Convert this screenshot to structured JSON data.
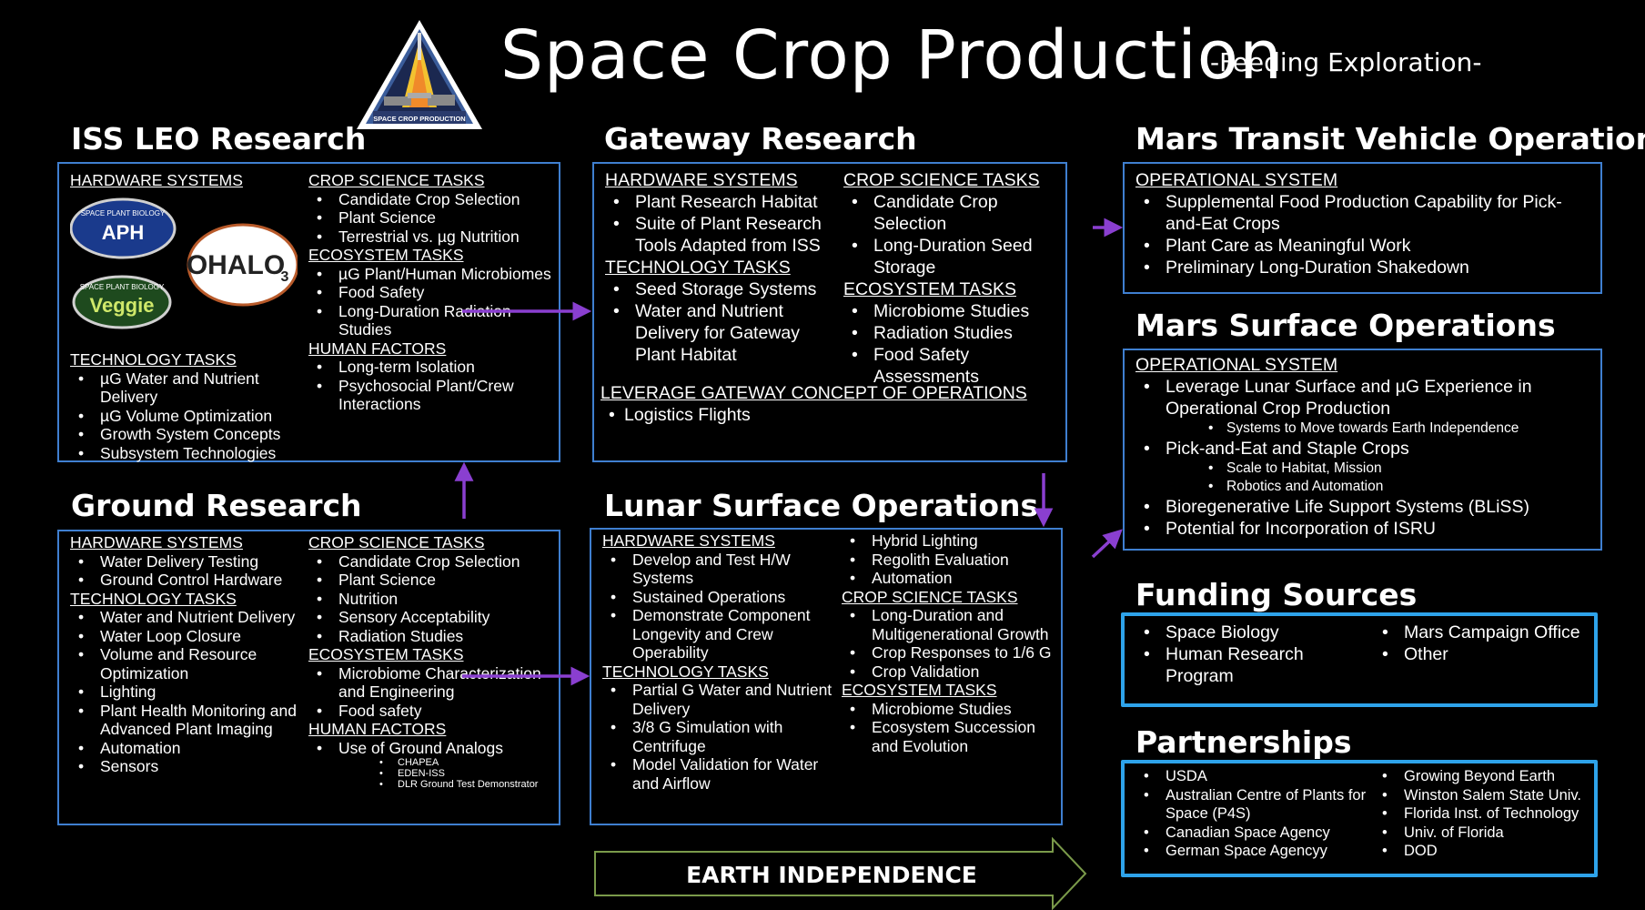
{
  "header": {
    "title": "Space Crop Production",
    "subtitle": "-Feeding Exploration-"
  },
  "logo": {
    "text": "SPACE CROP PRODUCTION"
  },
  "iss": {
    "title": "ISS LEO Research",
    "hardware_header": "HARDWARE SYSTEMS",
    "logos": {
      "aph_top": "SPACE PLANT BIOLOGY",
      "aph": "APH",
      "veggie_top": "SPACE PLANT BIOLOGY",
      "veggie": "Veggie",
      "ohalo": "OHALO",
      "ohalo_sub": "3"
    },
    "technology_header": "TECHNOLOGY TASKS",
    "technology": [
      "µG Water and Nutrient Delivery",
      "µG Volume Optimization",
      "Growth System Concepts",
      "Subsystem Technologies"
    ],
    "crop_header": "CROP SCIENCE TASKS",
    "crop": [
      "Candidate Crop Selection",
      "Plant Science",
      "Terrestrial vs. µg Nutrition"
    ],
    "eco_header": "ECOSYSTEM TASKS",
    "eco": [
      "µG Plant/Human Microbiomes",
      "Food Safety",
      "Long-Duration Radiation Studies"
    ],
    "human_header": "HUMAN FACTORS",
    "human": [
      "Long-term Isolation",
      "Psychosocial Plant/Crew Interactions"
    ]
  },
  "gateway": {
    "title": "Gateway Research",
    "hardware_header": "HARDWARE SYSTEMS",
    "hardware": [
      "Plant Research Habitat",
      "Suite of Plant Research Tools Adapted from ISS"
    ],
    "technology_header": "TECHNOLOGY TASKS",
    "technology": [
      "Seed Storage Systems",
      "Water and Nutrient Delivery for Gateway Plant Habitat"
    ],
    "crop_header": "CROP SCIENCE TASKS",
    "crop": [
      "Candidate Crop Selection",
      "Long-Duration Seed Storage"
    ],
    "eco_header": "ECOSYSTEM TASKS",
    "eco": [
      "Microbiome Studies",
      "Radiation Studies",
      "Food Safety Assessments"
    ],
    "leverage_header": "LEVERAGE GATEWAY CONCEPT OF OPERATIONS",
    "leverage": [
      "Logistics Flights"
    ]
  },
  "transit": {
    "title": "Mars Transit Vehicle Operations",
    "op_header": "OPERATIONAL SYSTEM",
    "items": [
      "Supplemental Food Production Capability for Pick-and-Eat Crops",
      "Plant Care as Meaningful Work",
      "Preliminary Long-Duration Shakedown"
    ]
  },
  "mars_surface": {
    "title": "Mars Surface Operations",
    "op_header": "OPERATIONAL SYSTEM",
    "item1": "Leverage Lunar Surface and µG Experience in Operational Crop Production",
    "item1_sub": [
      "Systems to Move towards Earth Independence"
    ],
    "item2": "Pick-and-Eat and Staple Crops",
    "item2_sub": [
      "Scale to Habitat, Mission",
      "Robotics and Automation"
    ],
    "item3": "Bioregenerative Life Support Systems (BLiSS)",
    "item4": "Potential for Incorporation of ISRU"
  },
  "ground": {
    "title": "Ground Research",
    "hardware_header": "HARDWARE SYSTEMS",
    "hardware": [
      "Water Delivery Testing",
      "Ground Control Hardware"
    ],
    "technology_header": "TECHNOLOGY TASKS",
    "technology": [
      "Water and Nutrient Delivery",
      "Water Loop Closure",
      "Volume and Resource Optimization",
      "Lighting",
      "Plant Health Monitoring and Advanced Plant Imaging",
      "Automation",
      "Sensors"
    ],
    "crop_header": "CROP SCIENCE TASKS",
    "crop": [
      "Candidate Crop Selection",
      "Plant Science",
      "Nutrition",
      "Sensory Acceptability",
      "Radiation Studies"
    ],
    "eco_header": "ECOSYSTEM TASKS",
    "eco": [
      "Microbiome Characterization and Engineering",
      "Food safety"
    ],
    "human_header": "HUMAN FACTORS",
    "human_item": "Use of Ground Analogs",
    "analogs": [
      "CHAPEA",
      "EDEN-ISS",
      "DLR Ground Test Demonstrator"
    ]
  },
  "lunar": {
    "title": "Lunar Surface Operations",
    "hardware_header": "HARDWARE SYSTEMS",
    "hardware": [
      "Develop and Test H/W Systems",
      "Sustained Operations",
      "Demonstrate Component Longevity and Crew Operability"
    ],
    "technology_header": "TECHNOLOGY TASKS",
    "technology": [
      "Partial G Water and Nutrient Delivery",
      "3/8 G Simulation with Centrifuge",
      "Model Validation for Water and Airflow"
    ],
    "misc": [
      "Hybrid Lighting",
      "Regolith Evaluation",
      "Automation"
    ],
    "crop_header": "CROP SCIENCE TASKS",
    "crop": [
      "Long-Duration and Multigenerational Growth",
      "Crop Responses to 1/6 G",
      "Crop Validation"
    ],
    "eco_header": "ECOSYSTEM TASKS",
    "eco": [
      "Microbiome Studies",
      "Ecosystem Succession and Evolution"
    ]
  },
  "funding": {
    "title": "Funding Sources",
    "col1": [
      "Space Biology",
      "Human Research Program"
    ],
    "col2": [
      "Mars Campaign Office",
      "Other"
    ]
  },
  "partnerships": {
    "title": "Partnerships",
    "col1": [
      "USDA",
      "Australian Centre of Plants for Space (P4S)",
      "Canadian Space Agency",
      "German Space Agencyy"
    ],
    "col2": [
      "Growing Beyond Earth",
      "Winston Salem State Univ.",
      "Florida Inst. of Technology",
      "Univ. of Florida",
      "DOD"
    ]
  },
  "earth_independence": {
    "label": "EARTH INDEPENDENCE"
  },
  "colors": {
    "box_border": "#3f7fd0",
    "thick_border": "#2ea3ea",
    "arrow": "#8a3fd0",
    "ei_border": "#7a9a4a"
  }
}
